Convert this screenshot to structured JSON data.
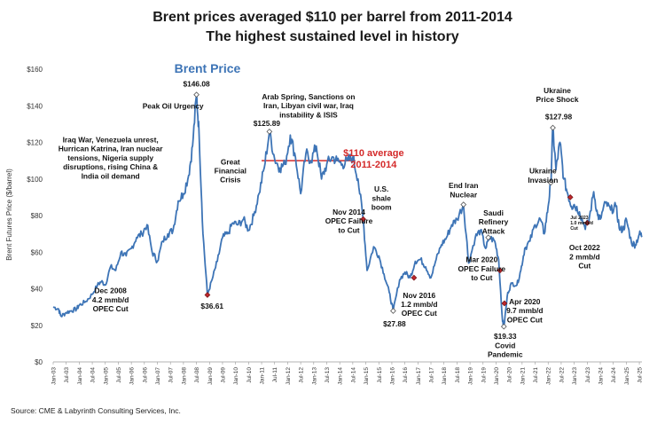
{
  "chart_data": {
    "type": "line",
    "title": "Brent prices averaged $110 per barrel from 2011-2014",
    "subtitle": "The highest sustained level in history",
    "series_label": "Brent Price",
    "ylabel": "Brent Futures Price ($/barrel)",
    "ylim": [
      0,
      160
    ],
    "yticks": [
      "$0",
      "$20",
      "$40",
      "$60",
      "$80",
      "$100",
      "$120",
      "$140",
      "$160"
    ],
    "yticks_values": [
      0,
      20,
      40,
      60,
      80,
      100,
      120,
      140,
      160
    ],
    "xlim": [
      2003.0,
      2025.6
    ],
    "xticks": [
      "Jan-03",
      "Jul-03",
      "Jan-04",
      "Jul-04",
      "Jan-05",
      "Jul-05",
      "Jan-06",
      "Jul-06",
      "Jan-07",
      "Jul-07",
      "Jan-08",
      "Jul-08",
      "Jan-09",
      "Jul-09",
      "Jan-10",
      "Jul-10",
      "Jan-11",
      "Jul-11",
      "Jan-12",
      "Jul-12",
      "Jan-13",
      "Jul-13",
      "Jan-14",
      "Jul-14",
      "Jan-15",
      "Jul-15",
      "Jan-16",
      "Jul-16",
      "Jan-17",
      "Jul-17",
      "Jan-18",
      "Jul-18",
      "Jan-19",
      "Jul-19",
      "Jan-20",
      "Jul-20",
      "Jan-21",
      "Jul-21",
      "Jan-22",
      "Jul-22",
      "Jan-23",
      "Jul-23",
      "Jan-24",
      "Jul-24",
      "Jan-25",
      "Jul-25"
    ],
    "grid": false,
    "series": [
      {
        "name": "Brent Price",
        "color": "#3d74b6",
        "points": [
          [
            2003.0,
            30
          ],
          [
            2003.2,
            29
          ],
          [
            2003.3,
            25
          ],
          [
            2003.5,
            27
          ],
          [
            2003.7,
            28
          ],
          [
            2003.9,
            29
          ],
          [
            2004.0,
            31
          ],
          [
            2004.25,
            33
          ],
          [
            2004.5,
            37
          ],
          [
            2004.7,
            42
          ],
          [
            2004.85,
            44
          ],
          [
            2005.0,
            42
          ],
          [
            2005.2,
            52
          ],
          [
            2005.4,
            50
          ],
          [
            2005.6,
            60
          ],
          [
            2005.8,
            58
          ],
          [
            2006.0,
            62
          ],
          [
            2006.2,
            68
          ],
          [
            2006.4,
            70
          ],
          [
            2006.6,
            75
          ],
          [
            2006.8,
            60
          ],
          [
            2007.0,
            55
          ],
          [
            2007.2,
            66
          ],
          [
            2007.4,
            70
          ],
          [
            2007.6,
            72
          ],
          [
            2007.8,
            88
          ],
          [
            2008.0,
            92
          ],
          [
            2008.2,
            102
          ],
          [
            2008.35,
            118
          ],
          [
            2008.5,
            146
          ],
          [
            2008.6,
            125
          ],
          [
            2008.75,
            70
          ],
          [
            2008.92,
            36.61
          ],
          [
            2009.1,
            45
          ],
          [
            2009.3,
            55
          ],
          [
            2009.5,
            68
          ],
          [
            2009.7,
            70
          ],
          [
            2009.9,
            76
          ],
          [
            2010.1,
            75
          ],
          [
            2010.3,
            78
          ],
          [
            2010.5,
            72
          ],
          [
            2010.7,
            80
          ],
          [
            2010.9,
            92
          ],
          [
            2011.1,
            106
          ],
          [
            2011.3,
            125.89
          ],
          [
            2011.5,
            111
          ],
          [
            2011.7,
            106
          ],
          [
            2011.9,
            108
          ],
          [
            2012.1,
            124
          ],
          [
            2012.3,
            112
          ],
          [
            2012.5,
            92
          ],
          [
            2012.7,
            114
          ],
          [
            2012.9,
            110
          ],
          [
            2013.1,
            118
          ],
          [
            2013.3,
            100
          ],
          [
            2013.5,
            108
          ],
          [
            2013.7,
            112
          ],
          [
            2013.9,
            110
          ],
          [
            2014.1,
            108
          ],
          [
            2014.3,
            110
          ],
          [
            2014.5,
            112
          ],
          [
            2014.7,
            100
          ],
          [
            2014.9,
            78
          ],
          [
            2015.05,
            50
          ],
          [
            2015.3,
            63
          ],
          [
            2015.5,
            58
          ],
          [
            2015.7,
            48
          ],
          [
            2015.9,
            38
          ],
          [
            2016.05,
            27.88
          ],
          [
            2016.3,
            45
          ],
          [
            2016.5,
            49
          ],
          [
            2016.7,
            46
          ],
          [
            2016.9,
            55
          ],
          [
            2017.1,
            56
          ],
          [
            2017.3,
            52
          ],
          [
            2017.5,
            46
          ],
          [
            2017.7,
            56
          ],
          [
            2017.9,
            64
          ],
          [
            2018.1,
            68
          ],
          [
            2018.3,
            75
          ],
          [
            2018.5,
            78
          ],
          [
            2018.75,
            86
          ],
          [
            2018.95,
            54
          ],
          [
            2019.2,
            68
          ],
          [
            2019.4,
            72
          ],
          [
            2019.6,
            62
          ],
          [
            2019.75,
            68
          ],
          [
            2019.95,
            66
          ],
          [
            2020.1,
            56
          ],
          [
            2020.25,
            22
          ],
          [
            2020.3,
            19.33
          ],
          [
            2020.45,
            38
          ],
          [
            2020.6,
            43
          ],
          [
            2020.8,
            42
          ],
          [
            2020.95,
            50
          ],
          [
            2021.1,
            62
          ],
          [
            2021.3,
            66
          ],
          [
            2021.5,
            75
          ],
          [
            2021.7,
            78
          ],
          [
            2021.85,
            70
          ],
          [
            2022.0,
            85
          ],
          [
            2022.1,
            98
          ],
          [
            2022.18,
            127.98
          ],
          [
            2022.3,
            105
          ],
          [
            2022.45,
            120
          ],
          [
            2022.6,
            100
          ],
          [
            2022.75,
            92
          ],
          [
            2022.9,
            85
          ],
          [
            2023.0,
            86
          ],
          [
            2023.2,
            82
          ],
          [
            2023.4,
            74
          ],
          [
            2023.55,
            76
          ],
          [
            2023.75,
            93
          ],
          [
            2023.9,
            80
          ],
          [
            2024.0,
            78
          ],
          [
            2024.2,
            87
          ],
          [
            2024.4,
            83
          ],
          [
            2024.6,
            85
          ],
          [
            2024.75,
            72
          ],
          [
            2024.9,
            73
          ],
          [
            2025.0,
            78
          ],
          [
            2025.2,
            65
          ],
          [
            2025.35,
            64
          ],
          [
            2025.5,
            70
          ],
          [
            2025.6,
            69
          ]
        ]
      }
    ],
    "average_line": {
      "x_start": 2011.0,
      "x_end": 2014.6,
      "value": 110,
      "color": "#d42a2a"
    },
    "annotations": [
      {
        "lines": [
          "Peak Oil Urgency"
        ],
        "x": 2007.6,
        "y": 138.5,
        "align": "middle"
      },
      {
        "lines": [
          "$146.08"
        ],
        "x": 2008.5,
        "y": 150.5,
        "align": "middle"
      },
      {
        "lines": [
          "Iraq War, Venezuela unrest,",
          "Hurrican Katrina, Iran nuclear",
          "tensions, Nigeria supply",
          "disruptions, rising China &",
          "India oil demand"
        ],
        "x": 2005.2,
        "y": 120,
        "align": "middle"
      },
      {
        "lines": [
          "Dec 2008",
          "4.2 mmb/d",
          "OPEC Cut"
        ],
        "x": 2005.2,
        "y": 37.5,
        "align": "middle"
      },
      {
        "lines": [
          "$36.61"
        ],
        "x": 2009.1,
        "y": 29,
        "align": "middle"
      },
      {
        "lines": [
          "Great",
          "Financial",
          "Crisis"
        ],
        "x": 2009.8,
        "y": 108,
        "align": "middle"
      },
      {
        "lines": [
          "Arab Spring, Sanctions on",
          "Iran, Libyan civil war, Iraq",
          "instability & ISIS"
        ],
        "x": 2012.8,
        "y": 143.5,
        "align": "middle"
      },
      {
        "lines": [
          "$125.89"
        ],
        "x": 2011.2,
        "y": 129,
        "align": "middle"
      },
      {
        "lines": [
          "Nov 2014",
          "OPEC Failure",
          "to Cut"
        ],
        "x": 2014.35,
        "y": 80.5,
        "align": "middle"
      },
      {
        "lines": [
          "U.S.",
          "shale",
          "boom"
        ],
        "x": 2015.6,
        "y": 93,
        "align": "middle"
      },
      {
        "lines": [
          "$27.88"
        ],
        "x": 2016.1,
        "y": 19.5,
        "align": "middle"
      },
      {
        "lines": [
          "Nov 2016",
          "1.2 mmb/d",
          "OPEC Cut"
        ],
        "x": 2017.05,
        "y": 35,
        "align": "middle"
      },
      {
        "lines": [
          "End Iran",
          "Nuclear"
        ],
        "x": 2018.75,
        "y": 95,
        "align": "middle"
      },
      {
        "lines": [
          "Saudi",
          "Refinery",
          "Attack"
        ],
        "x": 2019.9,
        "y": 80,
        "align": "middle"
      },
      {
        "lines": [
          "Mar 2020",
          "OPEC Failure",
          "to Cut"
        ],
        "x": 2019.45,
        "y": 54.5,
        "align": "middle"
      },
      {
        "lines": [
          "Apr 2020",
          "9.7 mmb/d",
          "OPEC Cut"
        ],
        "x": 2021.1,
        "y": 31.5,
        "align": "middle"
      },
      {
        "lines": [
          "$19.33",
          "Covid",
          "Pandemic"
        ],
        "x": 2020.35,
        "y": 12.5,
        "align": "middle"
      },
      {
        "lines": [
          "Ukraine",
          "Invasion"
        ],
        "x": 2021.8,
        "y": 103,
        "align": "middle"
      },
      {
        "lines": [
          "Ukraine",
          "Price Shock"
        ],
        "x": 2022.35,
        "y": 147,
        "align": "middle"
      },
      {
        "lines": [
          "$127.98"
        ],
        "x": 2022.4,
        "y": 132.5,
        "align": "middle"
      },
      {
        "lines": [
          "Oct 2022",
          "2 mmb/d",
          "Cut"
        ],
        "x": 2023.4,
        "y": 61,
        "align": "middle"
      }
    ],
    "small_annotations": [
      {
        "lines": [
          "Jul 2023",
          "1.0 mmb/d",
          "Cut"
        ],
        "x": 2022.85,
        "y": 78,
        "align": "start"
      }
    ],
    "red_annotation": {
      "lines": [
        "$110 average",
        "2011-2014"
      ],
      "x": 2015.3,
      "y": 112.5
    },
    "markers": [
      {
        "x": 2008.5,
        "y": 146.08,
        "color": "#ffffff"
      },
      {
        "x": 2008.92,
        "y": 36.61,
        "color": "#c0282d"
      },
      {
        "x": 2011.3,
        "y": 125.89,
        "color": "#ffffff"
      },
      {
        "x": 2014.9,
        "y": 78,
        "color": "#c0282d"
      },
      {
        "x": 2016.05,
        "y": 27.88,
        "color": "#ffffff"
      },
      {
        "x": 2016.85,
        "y": 46,
        "color": "#c0282d"
      },
      {
        "x": 2018.75,
        "y": 86,
        "color": "#ffffff"
      },
      {
        "x": 2019.7,
        "y": 68,
        "color": "#ffffff"
      },
      {
        "x": 2020.15,
        "y": 50,
        "color": "#c0282d"
      },
      {
        "x": 2020.3,
        "y": 19.33,
        "color": "#ffffff"
      },
      {
        "x": 2020.32,
        "y": 32,
        "color": "#c0282d"
      },
      {
        "x": 2022.1,
        "y": 98,
        "color": "#ffffff"
      },
      {
        "x": 2022.18,
        "y": 127.98,
        "color": "#ffffff"
      },
      {
        "x": 2022.85,
        "y": 90,
        "color": "#c0282d"
      },
      {
        "x": 2023.5,
        "y": 76,
        "color": "#c0282d"
      }
    ],
    "source": "Source: CME & Labyrinth Consulting Services, Inc."
  }
}
